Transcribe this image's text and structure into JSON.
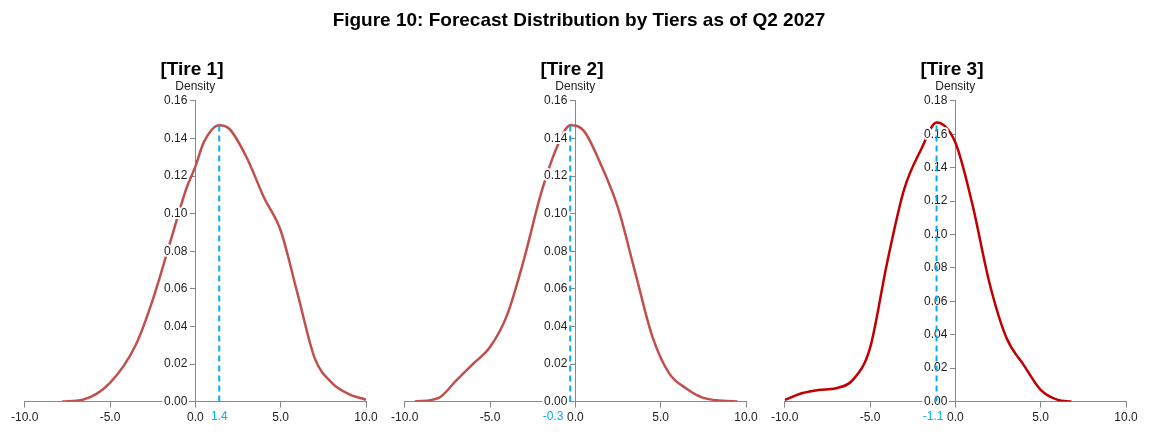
{
  "chart_data": [
    {
      "type": "line",
      "title": "[Tire 1]",
      "annotations": [
        "Figure 10: Forecast Distribution by Tiers as of Q2 2027"
      ],
      "ylabel": "Density",
      "x": [
        -7.8,
        -6.6,
        -5,
        -3.5,
        -2.5,
        -1.5,
        -0.5,
        0,
        0.5,
        1.4,
        2,
        3,
        4,
        5,
        6,
        7,
        8,
        9,
        10
      ],
      "series": [
        {
          "color": "#c0504d",
          "values": [
            0,
            0.001,
            0.01,
            0.03,
            0.054,
            0.084,
            0.114,
            0.125,
            0.138,
            0.147,
            0.145,
            0.13,
            0.109,
            0.091,
            0.057,
            0.023,
            0.01,
            0.004,
            0.001
          ]
        }
      ],
      "xlim": [
        -10,
        10
      ],
      "xticks": [
        {
          "value": -10,
          "label": "-10.0"
        },
        {
          "value": -5,
          "label": "-5.0"
        },
        {
          "value": 0,
          "label": "0.0"
        },
        {
          "value": 5,
          "label": "5.0"
        },
        {
          "value": 10,
          "label": "10.0"
        }
      ],
      "ylim": [
        0,
        0.16
      ],
      "yticks": [
        {
          "value": 0,
          "label": "0.00"
        },
        {
          "value": 0.02,
          "label": "0.02"
        },
        {
          "value": 0.04,
          "label": "0.04"
        },
        {
          "value": 0.06,
          "label": "0.06"
        },
        {
          "value": 0.08,
          "label": "0.08"
        },
        {
          "value": 0.1,
          "label": "0.10"
        },
        {
          "value": 0.12,
          "label": "0.12"
        },
        {
          "value": 0.14,
          "label": "0.14"
        },
        {
          "value": 0.16,
          "label": "0.16"
        }
      ],
      "ref_lines": [
        {
          "axis": "x",
          "value": 1.4,
          "label": "1.4",
          "color": "#00b0f0",
          "line_style": "dashed"
        }
      ],
      "grid": false,
      "legend": false,
      "marker": "none",
      "line_style": "solid"
    },
    {
      "type": "line",
      "title": "[Tire 2]",
      "ylabel": "Density",
      "x": [
        -9.4,
        -8,
        -7,
        -6,
        -5,
        -4,
        -3,
        -2,
        -1,
        -0.3,
        0.5,
        1.5,
        2.5,
        3.5,
        4.5,
        5.5,
        6.5,
        7.5,
        9.5
      ],
      "series": [
        {
          "color": "#c0504d",
          "values": [
            0,
            0.002,
            0.011,
            0.02,
            0.029,
            0.046,
            0.076,
            0.111,
            0.137,
            0.147,
            0.144,
            0.126,
            0.103,
            0.069,
            0.035,
            0.015,
            0.007,
            0.002,
            0
          ]
        }
      ],
      "xlim": [
        -10,
        10
      ],
      "xticks": [
        {
          "value": -10,
          "label": "-10.0"
        },
        {
          "value": -5,
          "label": "-5.0"
        },
        {
          "value": 0,
          "label": "0.0"
        },
        {
          "value": 5,
          "label": "5.0"
        },
        {
          "value": 10,
          "label": "10.0"
        }
      ],
      "ylim": [
        0,
        0.16
      ],
      "yticks": [
        {
          "value": 0,
          "label": "0.00"
        },
        {
          "value": 0.02,
          "label": "0.02"
        },
        {
          "value": 0.04,
          "label": "0.04"
        },
        {
          "value": 0.06,
          "label": "0.06"
        },
        {
          "value": 0.08,
          "label": "0.08"
        },
        {
          "value": 0.1,
          "label": "0.10"
        },
        {
          "value": 0.12,
          "label": "0.12"
        },
        {
          "value": 0.14,
          "label": "0.14"
        },
        {
          "value": 0.16,
          "label": "0.16"
        }
      ],
      "ref_lines": [
        {
          "axis": "x",
          "value": -0.3,
          "label": "-0.3",
          "color": "#00b0f0",
          "line_style": "dashed"
        }
      ],
      "grid": false,
      "legend": false,
      "marker": "none",
      "line_style": "solid"
    },
    {
      "type": "line",
      "title": "[Tire 3]",
      "ylabel": "Density",
      "x": [
        -10,
        -9,
        -8,
        -7,
        -6,
        -5,
        -4,
        -3,
        -2,
        -1.1,
        0,
        1,
        2,
        3,
        4,
        5,
        6,
        6.8
      ],
      "series": [
        {
          "color": "#c00000",
          "values": [
            0.001,
            0.005,
            0.007,
            0.008,
            0.013,
            0.032,
            0.083,
            0.127,
            0.151,
            0.167,
            0.155,
            0.118,
            0.071,
            0.038,
            0.022,
            0.007,
            0.001,
            0
          ]
        }
      ],
      "xlim": [
        -10,
        10
      ],
      "xticks": [
        {
          "value": -10,
          "label": "-10.0"
        },
        {
          "value": -5,
          "label": "-5.0"
        },
        {
          "value": 0,
          "label": "0.0"
        },
        {
          "value": 5,
          "label": "5.0"
        },
        {
          "value": 10,
          "label": "10.0"
        }
      ],
      "ylim": [
        0,
        0.18
      ],
      "yticks": [
        {
          "value": 0,
          "label": "0.00"
        },
        {
          "value": 0.02,
          "label": "0.02"
        },
        {
          "value": 0.04,
          "label": "0.04"
        },
        {
          "value": 0.06,
          "label": "0.06"
        },
        {
          "value": 0.08,
          "label": "0.08"
        },
        {
          "value": 0.1,
          "label": "0.10"
        },
        {
          "value": 0.12,
          "label": "0.12"
        },
        {
          "value": 0.14,
          "label": "0.14"
        },
        {
          "value": 0.16,
          "label": "0.16"
        },
        {
          "value": 0.18,
          "label": "0.18"
        }
      ],
      "ref_lines": [
        {
          "axis": "x",
          "value": -1.1,
          "label": "-1.1",
          "color": "#00b0f0",
          "line_style": "dashed"
        }
      ],
      "grid": false,
      "legend": false,
      "marker": "none",
      "line_style": "solid"
    }
  ]
}
